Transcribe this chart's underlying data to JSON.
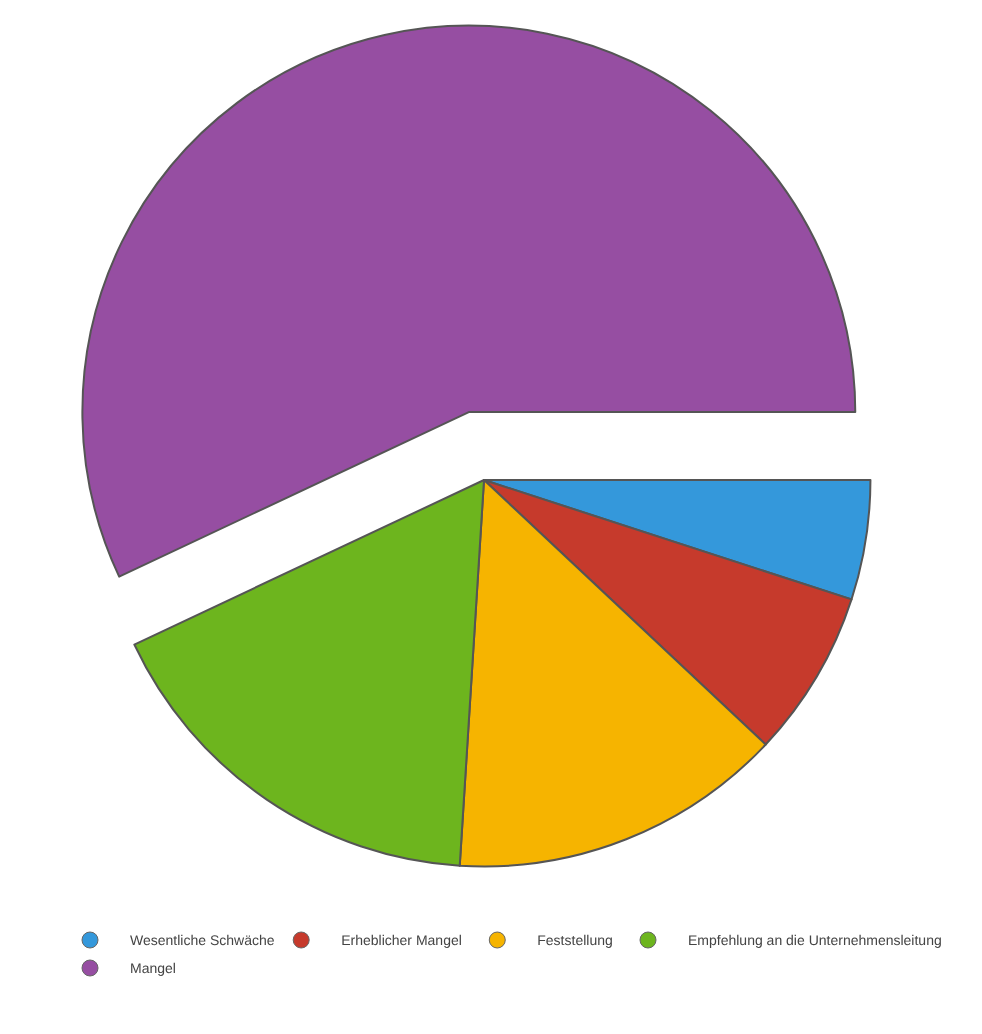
{
  "chart_data": {
    "type": "pie",
    "categories": [
      "Wesentliche Schwäche",
      "Erheblicher Mangel",
      "Feststellung",
      "Empfehlung an die Unternehmensleitung",
      "Mangel"
    ],
    "values": [
      5,
      7,
      14,
      17,
      57
    ],
    "colors": [
      "#3498db",
      "#c63a2c",
      "#f6b400",
      "#6db51e",
      "#964ea2"
    ],
    "legend": "bottom"
  }
}
